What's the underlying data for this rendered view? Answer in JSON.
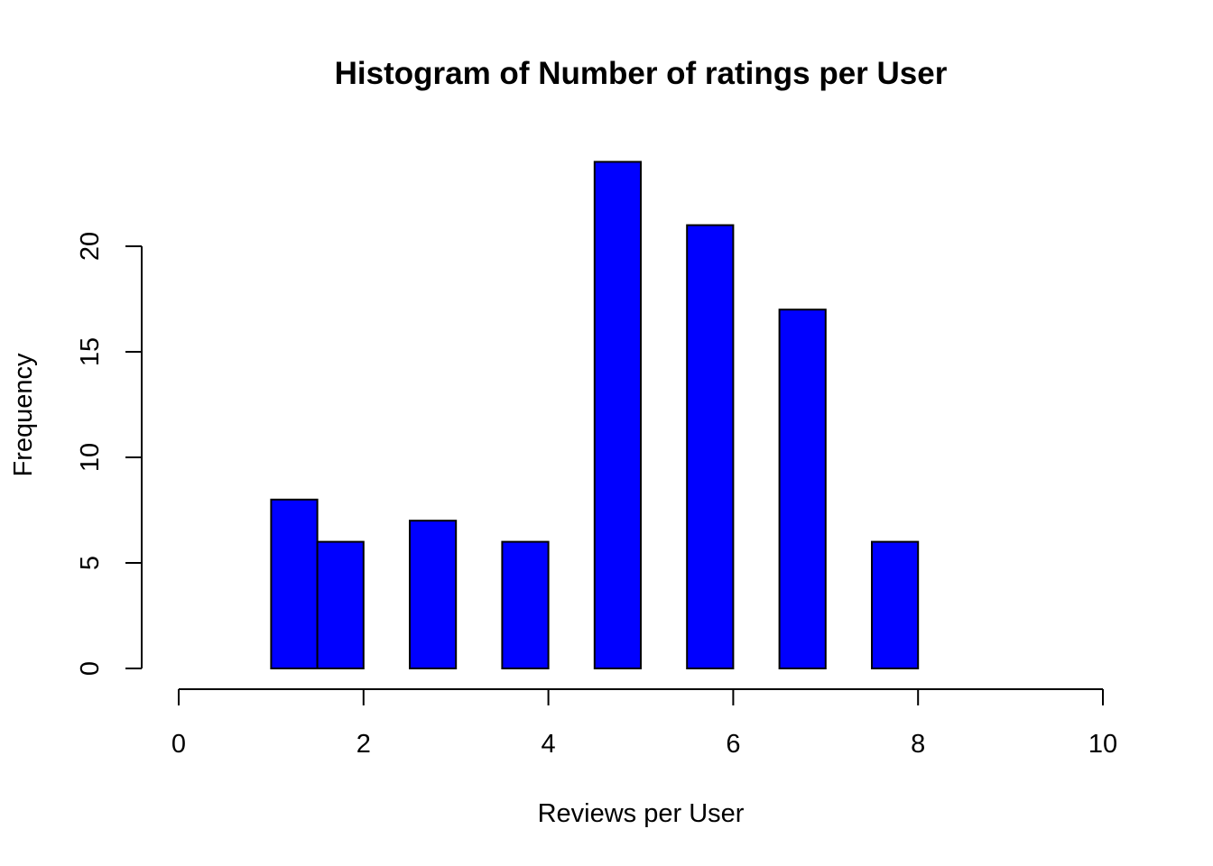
{
  "chart_data": {
    "type": "bar",
    "subtype": "histogram",
    "title": "Histogram of Number of ratings per User",
    "xlabel": "Reviews per User",
    "ylabel": "Frequency",
    "xlim": [
      0,
      10
    ],
    "ylim": [
      0,
      24
    ],
    "x_ticks": [
      "0",
      "2",
      "4",
      "6",
      "8",
      "10"
    ],
    "y_ticks": [
      "0",
      "5",
      "10",
      "15",
      "20"
    ],
    "bins": [
      {
        "start": 1.0,
        "end": 1.5,
        "count": 8
      },
      {
        "start": 1.5,
        "end": 2.0,
        "count": 6
      },
      {
        "start": 2.5,
        "end": 3.0,
        "count": 7
      },
      {
        "start": 3.5,
        "end": 4.0,
        "count": 6
      },
      {
        "start": 4.5,
        "end": 5.0,
        "count": 24
      },
      {
        "start": 5.5,
        "end": 6.0,
        "count": 21
      },
      {
        "start": 6.5,
        "end": 7.0,
        "count": 17
      },
      {
        "start": 7.5,
        "end": 8.0,
        "count": 6
      }
    ],
    "bar_color": "#0000ff",
    "bar_border_color": "#000000",
    "grid": false,
    "legend": "none"
  }
}
